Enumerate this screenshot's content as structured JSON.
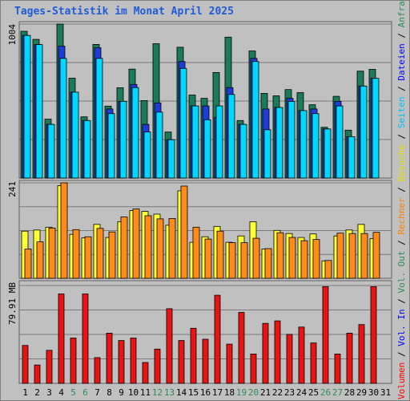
{
  "chart_data": {
    "type": "bar",
    "title": "Tages-Statistik im Monat April 2025",
    "categories": [
      "1",
      "2",
      "3",
      "4",
      "5",
      "6",
      "7",
      "8",
      "9",
      "10",
      "11",
      "12",
      "13",
      "14",
      "15",
      "16",
      "17",
      "18",
      "19",
      "20",
      "21",
      "22",
      "23",
      "24",
      "25",
      "26",
      "27",
      "28",
      "29",
      "30",
      "31"
    ],
    "weekend_days": [
      "5",
      "6",
      "12",
      "13",
      "19",
      "20",
      "26",
      "27"
    ],
    "right_label": {
      "parts": [
        {
          "text": "Volumen",
          "color": "#ff0000"
        },
        {
          "text": " / ",
          "color": "#000000"
        },
        {
          "text": "Vol. In",
          "color": "#0000ff"
        },
        {
          "text": " / ",
          "color": "#000000"
        },
        {
          "text": "Vol. Out",
          "color": "#2e8b57"
        },
        {
          "text": " / ",
          "color": "#000000"
        },
        {
          "text": "Rechner",
          "color": "#ff7f00"
        },
        {
          "text": " / ",
          "color": "#000000"
        },
        {
          "text": "Besuche",
          "color": "#e0e000"
        },
        {
          "text": " / ",
          "color": "#000000"
        },
        {
          "text": "Seiten",
          "color": "#00bfff"
        },
        {
          "text": " / ",
          "color": "#000000"
        },
        {
          "text": "Dateien",
          "color": "#0000ff"
        },
        {
          "text": " / ",
          "color": "#000000"
        },
        {
          "text": "Anfragen",
          "color": "#2e8b57"
        }
      ]
    },
    "panels": [
      {
        "name": "requests",
        "ymax_label": "1004",
        "ymax": 1004,
        "series": [
          {
            "name": "Anfragen",
            "color": "#1a7a5a",
            "values": [
              957,
              904,
              384,
              1004,
              651,
              399,
              871,
              469,
              589,
              710,
              505,
              876,
              300,
              853,
              542,
              520,
              688,
              919,
              375,
              829,
              552,
              536,
              577,
              557,
              478,
              331,
              533,
              312,
              697,
              709
            ]
          },
          {
            "name": "Dateien",
            "color": "#1e3cd6",
            "values": [
              930,
              870,
              350,
              860,
              560,
              375,
              850,
              450,
              500,
              610,
              350,
              490,
              250,
              760,
              470,
              470,
              395,
              590,
              350,
              780,
              450,
              460,
              520,
              440,
              450,
              320,
              500,
              270,
              600,
              650
            ]
          },
          {
            "name": "Seiten",
            "color": "#00d8ff",
            "values": [
              930,
              870,
              350,
              780,
              560,
              375,
              780,
              420,
              500,
              590,
              300,
              430,
              250,
              715,
              470,
              380,
              470,
              545,
              350,
              760,
              315,
              460,
              500,
              440,
              420,
              320,
              470,
              270,
              600,
              650
            ]
          }
        ]
      },
      {
        "name": "visits",
        "ymax_label": "241",
        "ymax": 241,
        "series": [
          {
            "name": "Besuche",
            "color": "#ffff33",
            "values": [
              119,
              122,
              129,
              234,
              111,
              102,
              136,
              103,
              143,
              171,
              169,
              162,
              134,
              221,
              91,
              105,
              131,
              91,
              107,
              143,
              74,
              121,
              113,
              103,
              112,
              44,
              107,
              122,
              136,
              100
            ]
          },
          {
            "name": "Rechner",
            "color": "#ff8c1a",
            "values": [
              74,
              92,
              127,
              241,
              123,
              105,
              126,
              117,
              155,
              175,
              158,
              150,
              151,
              233,
              129,
              99,
              119,
              90,
              90,
              101,
              75,
              115,
              103,
              95,
              98,
              45,
              114,
              113,
              113,
              116
            ]
          }
        ]
      },
      {
        "name": "volume",
        "ymax_label": "79.91 MB",
        "ymax": 79.91,
        "series": [
          {
            "name": "Volumen",
            "color": "#e81414",
            "values": [
              31,
              15,
              27,
              73,
              37,
              73,
              21,
              41,
              35,
              37,
              17,
              28,
              61,
              35,
              45,
              36,
              72,
              32,
              58,
              24,
              49,
              51,
              40,
              46,
              33,
              79,
              24,
              41,
              48,
              79
            ]
          }
        ]
      }
    ]
  }
}
